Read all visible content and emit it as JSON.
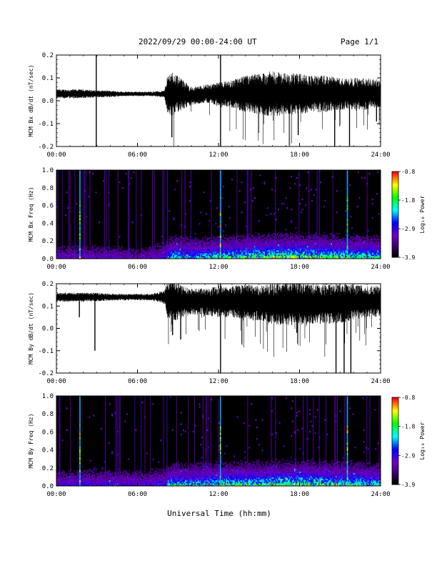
{
  "header": {
    "title": "2022/09/29  00:00-24:00 UT",
    "page": "Page 1/1"
  },
  "footer": {
    "xlabel": "Universal Time (hh:mm)"
  },
  "colorbar": {
    "label": "Log₁₀ Power",
    "ticks": [
      "-0.8",
      "-1.8",
      "-2.9",
      "-3.9"
    ],
    "colors": [
      "#ff0000",
      "#ffff00",
      "#00ff00",
      "#00ffff",
      "#0000ff",
      "#7a00cc",
      "#000000"
    ]
  },
  "chart_data": [
    {
      "type": "line",
      "title": "",
      "ylabel": "MCM Bx dB/dt (nT/sec)",
      "xlabel": "",
      "xlim": [
        0,
        24
      ],
      "ylim": [
        -0.2,
        0.2
      ],
      "x_ticks": [
        "00:00",
        "06:00",
        "12:00",
        "18:00",
        "24:00"
      ],
      "y_ticks": [
        "-0.2",
        "-0.1",
        "0.0",
        "0.1",
        "0.2"
      ],
      "series": [
        {
          "hours": [
            0,
            1,
            2,
            3,
            4,
            5,
            6,
            7,
            8,
            8.2,
            8.5,
            9,
            10,
            11,
            12,
            13,
            14,
            15,
            16,
            17,
            18,
            19,
            20,
            21,
            22,
            23,
            24
          ],
          "baseline": [
            0.03,
            0.03,
            0.03,
            0.03,
            0.03,
            0.03,
            0.03,
            0.03,
            0.03,
            0.03,
            0.03,
            0.03,
            0.02,
            0.03,
            0.03,
            0.03,
            0.03,
            0.03,
            0.03,
            0.03,
            0.03,
            0.03,
            0.03,
            0.03,
            0.03,
            0.03,
            0.03
          ],
          "amplitude": [
            0.02,
            0.02,
            0.02,
            0.015,
            0.015,
            0.01,
            0.01,
            0.01,
            0.015,
            0.08,
            0.1,
            0.08,
            0.04,
            0.04,
            0.05,
            0.06,
            0.08,
            0.09,
            0.1,
            0.09,
            0.09,
            0.08,
            0.08,
            0.07,
            0.07,
            0.07,
            0.06
          ]
        }
      ],
      "spikes": [
        {
          "hour": 2.95,
          "value": -0.2
        },
        {
          "hour": 2.95,
          "value": 0.2
        },
        {
          "hour": 8.55,
          "value": -0.16
        },
        {
          "hour": 12.15,
          "value": -0.2
        },
        {
          "hour": 12.15,
          "value": 0.2
        },
        {
          "hour": 17.9,
          "value": -0.15
        },
        {
          "hour": 20.6,
          "value": -0.2
        },
        {
          "hour": 21.7,
          "value": -0.2
        },
        {
          "hour": 23.7,
          "value": -0.09
        }
      ]
    },
    {
      "type": "heatmap",
      "title": "",
      "ylabel": "MCM Bx Freq (Hz)",
      "xlabel": "",
      "xlim": [
        0,
        24
      ],
      "ylim": [
        0,
        1.0
      ],
      "zlim": [
        -3.9,
        -0.8
      ],
      "x_ticks": [
        "00:00",
        "06:00",
        "12:00",
        "18:00",
        "24:00"
      ],
      "y_ticks": [
        "0.0",
        "0.2",
        "0.4",
        "0.6",
        "0.8",
        "1.0"
      ],
      "vertical_lines_hours": [
        1.7,
        12.1,
        21.5
      ],
      "activity_hours": [
        0,
        2,
        4,
        6,
        8,
        8.5,
        10,
        12,
        14,
        16,
        18,
        20,
        22,
        24
      ],
      "activity_level": [
        0.3,
        0.3,
        0.3,
        0.25,
        0.4,
        0.7,
        0.6,
        0.7,
        0.8,
        0.85,
        0.85,
        0.8,
        0.75,
        0.7
      ]
    },
    {
      "type": "line",
      "title": "",
      "ylabel": "MCM By dB/dt (nT/sec)",
      "xlabel": "",
      "xlim": [
        0,
        24
      ],
      "ylim": [
        -0.2,
        0.2
      ],
      "x_ticks": [
        "00:00",
        "06:00",
        "12:00",
        "18:00",
        "24:00"
      ],
      "y_ticks": [
        "-0.2",
        "-0.1",
        "0.0",
        "0.1",
        "0.2"
      ],
      "series": [
        {
          "hours": [
            0,
            1,
            2,
            3,
            4,
            5,
            6,
            7,
            8,
            8.2,
            8.5,
            9,
            10,
            11,
            12,
            13,
            14,
            15,
            16,
            17,
            18,
            19,
            20,
            21,
            22,
            23,
            24
          ],
          "baseline": [
            0.14,
            0.14,
            0.14,
            0.14,
            0.14,
            0.14,
            0.14,
            0.14,
            0.14,
            0.13,
            0.12,
            0.12,
            0.12,
            0.12,
            0.12,
            0.12,
            0.12,
            0.11,
            0.11,
            0.11,
            0.11,
            0.11,
            0.11,
            0.11,
            0.12,
            0.12,
            0.12
          ],
          "amplitude": [
            0.02,
            0.02,
            0.02,
            0.02,
            0.015,
            0.015,
            0.015,
            0.015,
            0.03,
            0.08,
            0.1,
            0.08,
            0.06,
            0.06,
            0.07,
            0.07,
            0.08,
            0.08,
            0.09,
            0.1,
            0.1,
            0.09,
            0.09,
            0.09,
            0.08,
            0.07,
            0.07
          ]
        }
      ],
      "spikes": [
        {
          "hour": 1.7,
          "value": 0.05
        },
        {
          "hour": 2.85,
          "value": -0.1
        },
        {
          "hour": 8.6,
          "value": -0.03
        },
        {
          "hour": 9.2,
          "value": -0.05
        },
        {
          "hour": 12.15,
          "value": -0.2
        },
        {
          "hour": 12.15,
          "value": 0.2
        },
        {
          "hour": 17.8,
          "value": -0.02
        },
        {
          "hour": 20.7,
          "value": -0.2
        },
        {
          "hour": 21.3,
          "value": -0.2
        },
        {
          "hour": 21.8,
          "value": -0.2
        }
      ]
    },
    {
      "type": "heatmap",
      "title": "",
      "ylabel": "MCM By Freq (Hz)",
      "xlabel": "",
      "xlim": [
        0,
        24
      ],
      "ylim": [
        0,
        1.0
      ],
      "zlim": [
        -3.9,
        -0.8
      ],
      "x_ticks": [
        "00:00",
        "06:00",
        "12:00",
        "18:00",
        "24:00"
      ],
      "y_ticks": [
        "0.0",
        "0.2",
        "0.4",
        "0.6",
        "0.8",
        "1.0"
      ],
      "vertical_lines_hours": [
        1.7,
        12.1,
        21.5
      ],
      "activity_hours": [
        0,
        2,
        4,
        6,
        8,
        8.5,
        10,
        12,
        14,
        16,
        18,
        20,
        22,
        24
      ],
      "activity_level": [
        0.35,
        0.4,
        0.4,
        0.35,
        0.45,
        0.7,
        0.65,
        0.75,
        0.75,
        0.8,
        0.85,
        0.8,
        0.75,
        0.7
      ]
    }
  ]
}
